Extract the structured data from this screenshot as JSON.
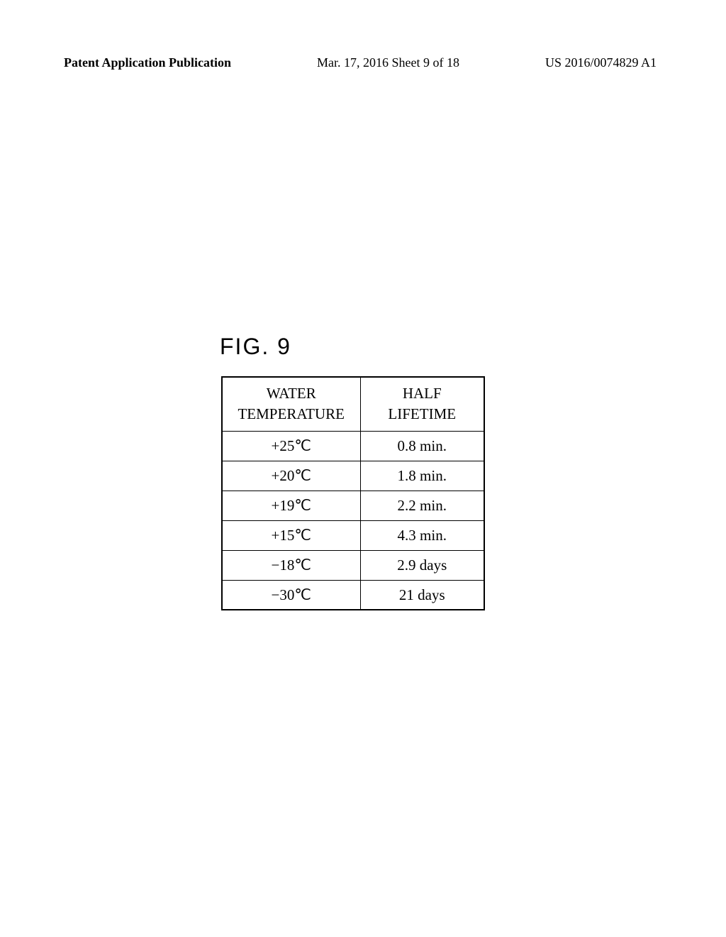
{
  "header": {
    "left": "Patent Application Publication",
    "center": "Mar. 17, 2016  Sheet 9 of 18",
    "right": "US 2016/0074829 A1"
  },
  "figure": {
    "label": "FIG. 9"
  },
  "table": {
    "columns": {
      "temperature_label_line1": "WATER",
      "temperature_label_line2": "TEMPERATURE",
      "halflife_label_line1": "HALF",
      "halflife_label_line2": "LIFETIME"
    },
    "rows": [
      {
        "temp": "+25℃",
        "half": "0.8 min."
      },
      {
        "temp": "+20℃",
        "half": "1.8 min."
      },
      {
        "temp": "+19℃",
        "half": "2.2 min."
      },
      {
        "temp": "+15℃",
        "half": "4.3 min."
      },
      {
        "temp": "−18℃",
        "half": "2.9 days"
      },
      {
        "temp": "−30℃",
        "half": "21 days"
      }
    ],
    "border_color": "#000000",
    "background_color": "#ffffff",
    "cell_fontsize": 21,
    "header_fontsize": 21
  }
}
